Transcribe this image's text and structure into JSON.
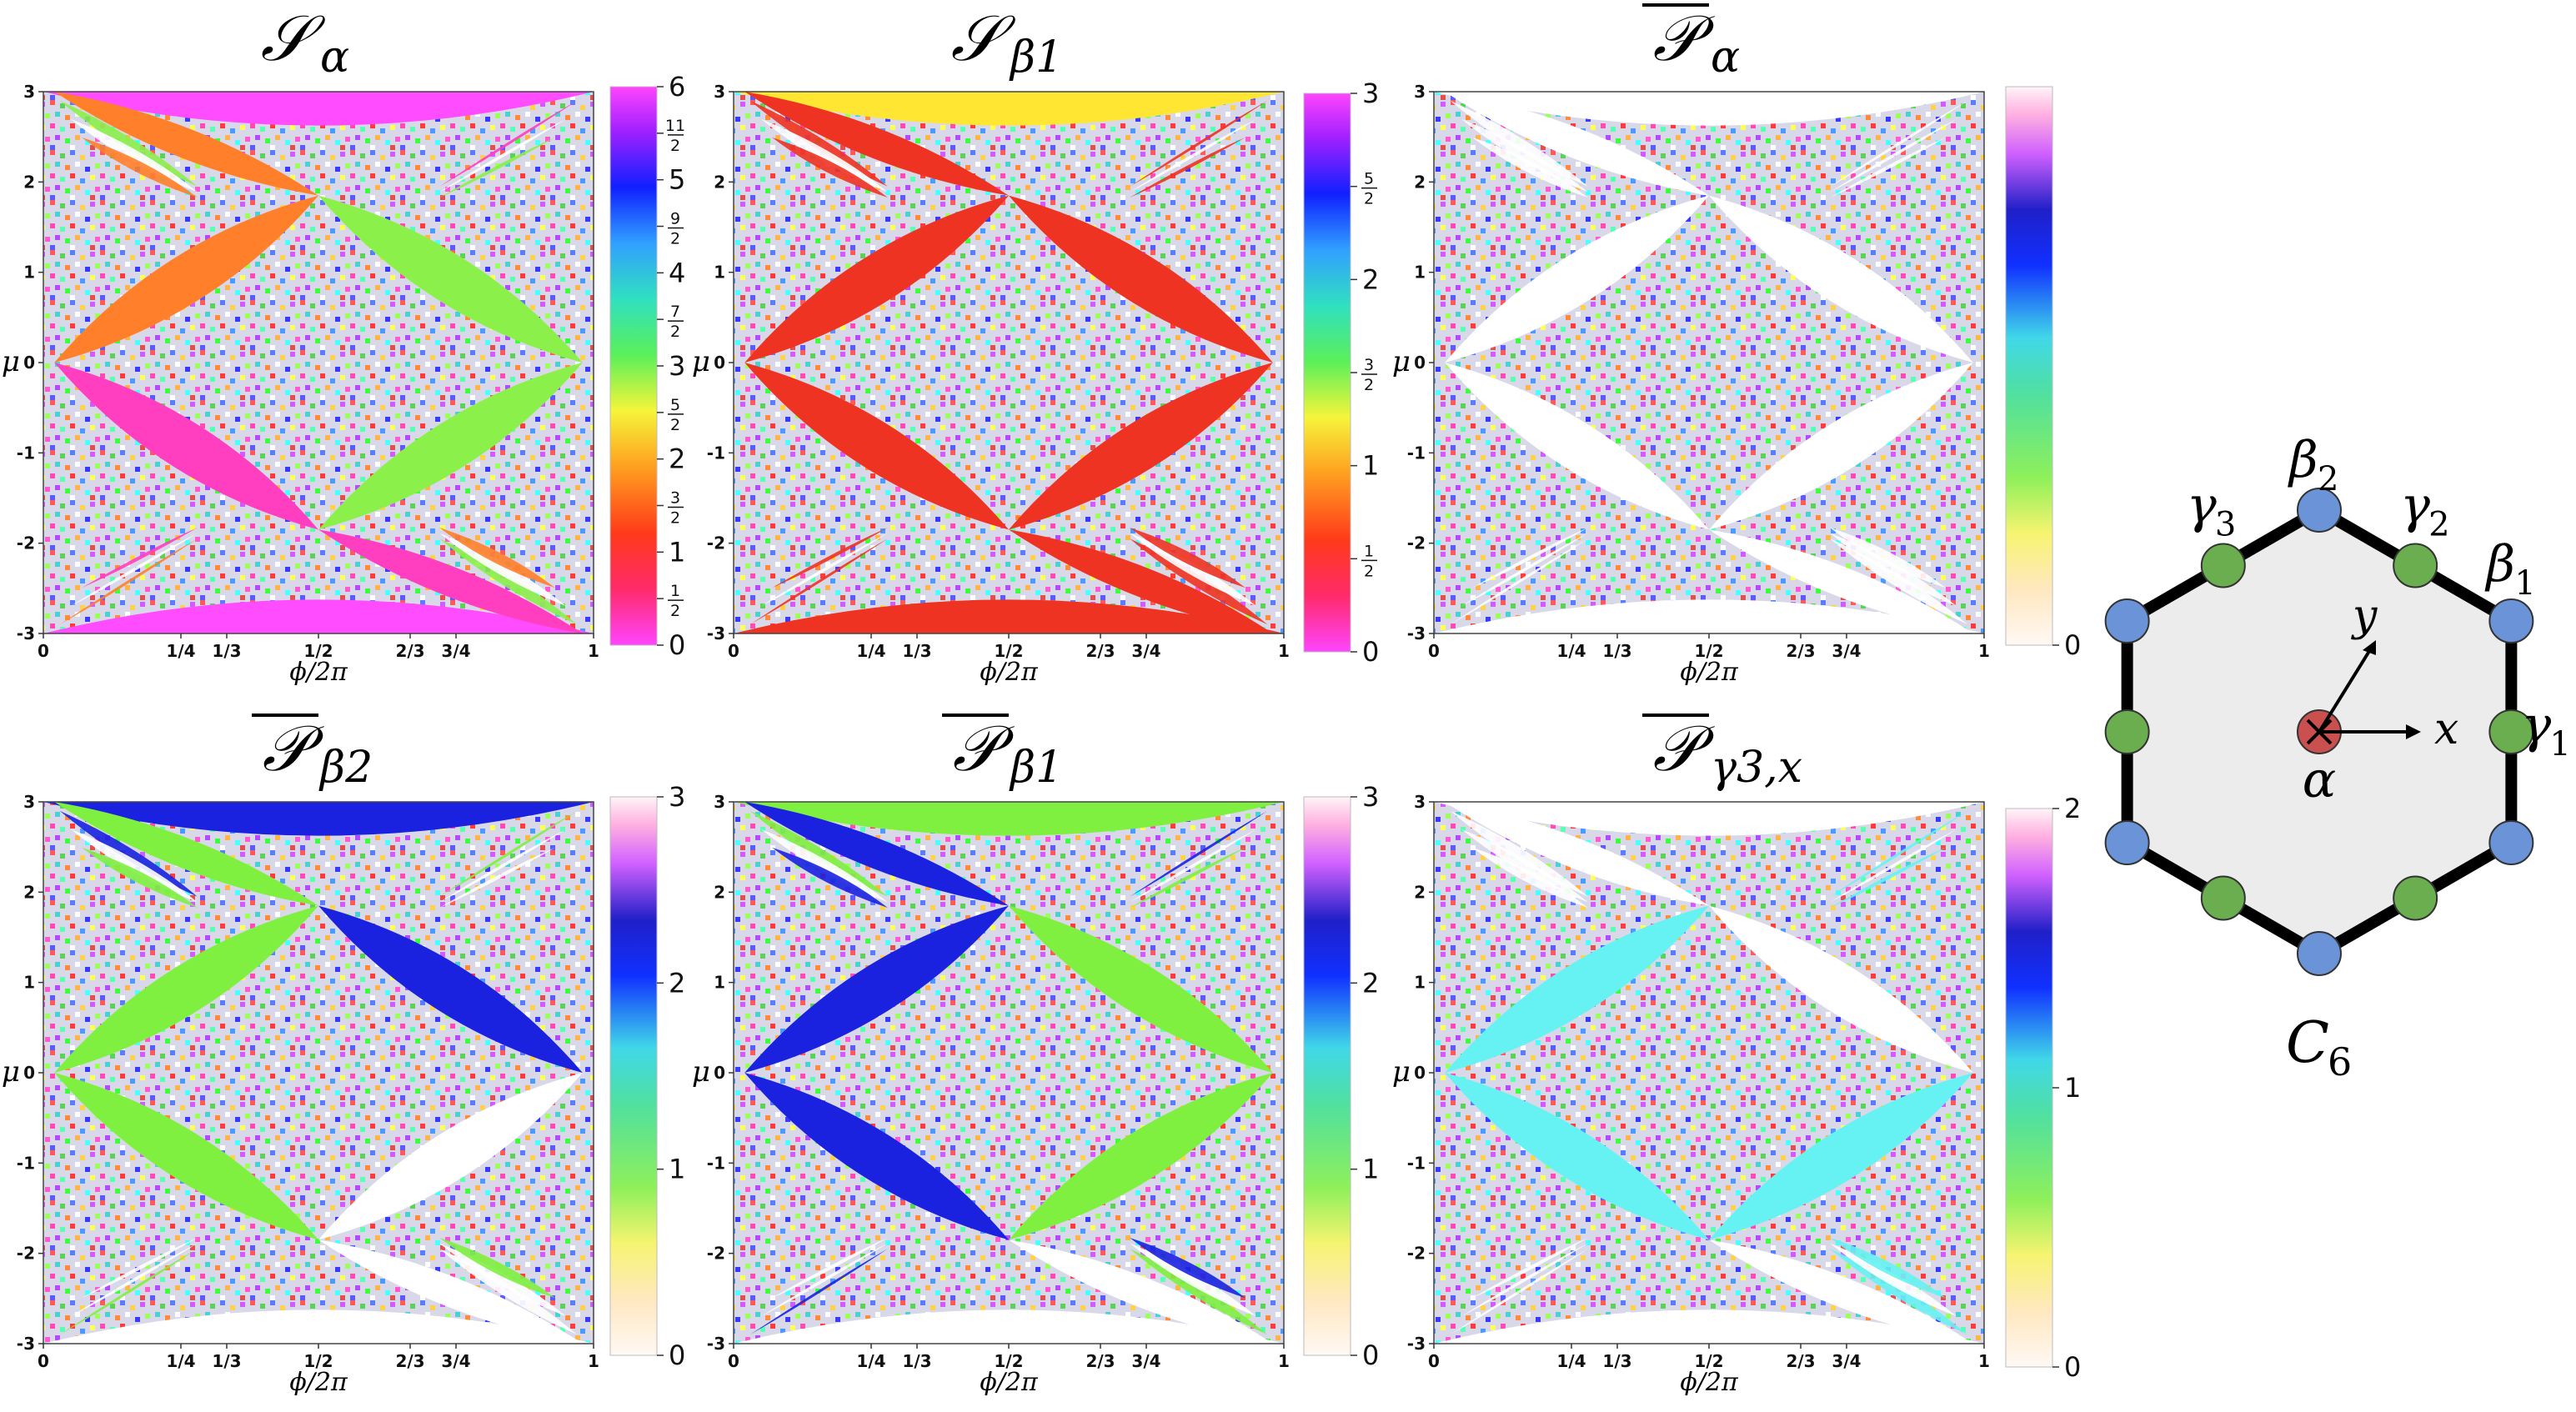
{
  "panels": [
    {
      "title": "𝒮",
      "subscript": "α",
      "overline": false,
      "colormap": "rainbow",
      "cbar_ticks": [
        {
          "v": 6,
          "t": "6"
        },
        {
          "v": 5.5,
          "n": "11",
          "d": "2"
        },
        {
          "v": 5,
          "t": "5"
        },
        {
          "v": 4.5,
          "n": "9",
          "d": "2"
        },
        {
          "v": 4,
          "t": "4"
        },
        {
          "v": 3.5,
          "n": "7",
          "d": "2"
        },
        {
          "v": 3,
          "t": "3"
        },
        {
          "v": 2.5,
          "n": "5",
          "d": "2"
        },
        {
          "v": 2,
          "t": "2"
        },
        {
          "v": 1.5,
          "n": "3",
          "d": "2"
        },
        {
          "v": 1,
          "t": "1"
        },
        {
          "v": 0.5,
          "n": "1",
          "d": "2"
        },
        {
          "v": 0,
          "t": "0"
        }
      ],
      "cbar_range": [
        0,
        6
      ],
      "lobe_colors": [
        "#ff7f2a",
        "#8cf04a",
        "#ff3fbf",
        "#ff7f2a",
        "#8cf04a",
        "#ff3fbf"
      ],
      "band_colors": [
        "#ff4cff",
        "#ff4cff"
      ]
    },
    {
      "title": "𝒮",
      "subscript": "β1",
      "overline": false,
      "colormap": "rainbow",
      "cbar_ticks": [
        {
          "v": 3,
          "t": "3"
        },
        {
          "v": 2.5,
          "n": "5",
          "d": "2"
        },
        {
          "v": 2,
          "t": "2"
        },
        {
          "v": 1.5,
          "n": "3",
          "d": "2"
        },
        {
          "v": 1,
          "t": "1"
        },
        {
          "v": 0.5,
          "n": "1",
          "d": "2"
        },
        {
          "v": 0,
          "t": "0"
        }
      ],
      "cbar_range": [
        0,
        3
      ],
      "lobe_colors": [
        "#ee3322",
        "#ee3322",
        "#ee3322",
        "#ee3322",
        "#ee3322",
        "#ee3322"
      ],
      "band_colors": [
        "#ffe633",
        "#ee3322"
      ]
    },
    {
      "title": "𝒫",
      "subscript": "α",
      "overline": true,
      "colormap": "pale",
      "cbar_ticks": [
        {
          "v": 0,
          "t": "0"
        }
      ],
      "cbar_range": [
        0,
        1
      ],
      "lobe_colors": [
        "#ffffff",
        "#ffffff",
        "#ffffff",
        "#ffffff",
        "#ffffff",
        "#ffffff"
      ],
      "band_colors": [
        "#ffffff",
        "#ffffff"
      ]
    },
    {
      "title": "𝒫",
      "subscript": "β2",
      "overline": true,
      "colormap": "pale",
      "cbar_ticks": [
        {
          "v": 3,
          "t": "3"
        },
        {
          "v": 2,
          "t": "2"
        },
        {
          "v": 1,
          "t": "1"
        },
        {
          "v": 0,
          "t": "0"
        }
      ],
      "cbar_range": [
        0,
        3
      ],
      "lobe_colors": [
        "#80f040",
        "#1a22e0",
        "#80f040",
        "#80f040",
        "#ffffff",
        "#ffffff"
      ],
      "band_colors": [
        "#1a22e0",
        "#ffffff"
      ]
    },
    {
      "title": "𝒫",
      "subscript": "β1",
      "overline": true,
      "colormap": "pale",
      "cbar_ticks": [
        {
          "v": 3,
          "t": "3"
        },
        {
          "v": 2,
          "t": "2"
        },
        {
          "v": 1,
          "t": "1"
        },
        {
          "v": 0,
          "t": "0"
        }
      ],
      "cbar_range": [
        0,
        3
      ],
      "lobe_colors": [
        "#1a22e0",
        "#80f040",
        "#1a22e0",
        "#1a22e0",
        "#80f040",
        "#ffffff"
      ],
      "band_colors": [
        "#80f040",
        "#ffffff"
      ]
    },
    {
      "title": "𝒫",
      "subscript": "γ3,x",
      "overline": true,
      "colormap": "pale",
      "cbar_ticks": [
        {
          "v": 2,
          "t": "2"
        },
        {
          "v": 1,
          "t": "1"
        },
        {
          "v": 0,
          "t": "0"
        }
      ],
      "cbar_range": [
        0,
        2
      ],
      "lobe_colors": [
        "#66f2f2",
        "#ffffff",
        "#66f2f2",
        "#ffffff",
        "#66f2f2",
        "#ffffff"
      ],
      "band_colors": [
        "#ffffff",
        "#ffffff"
      ]
    }
  ],
  "axes": {
    "x_label": "ϕ/2π",
    "y_label": "μ",
    "x_ticks": [
      "0",
      "1/4",
      "1/3",
      "1/2",
      "2/3",
      "3/4",
      "1"
    ],
    "x_tick_values": [
      0,
      0.25,
      0.3333,
      0.5,
      0.6667,
      0.75,
      1
    ],
    "y_ticks": [
      "3",
      "2",
      "1",
      "0",
      "-1",
      "-2",
      "-3"
    ],
    "y_tick_values": [
      3,
      2,
      1,
      0,
      -1,
      -2,
      -3
    ]
  },
  "hexagon": {
    "caption": "C6",
    "caption_main": "C",
    "caption_sub": "6",
    "center_label": "α",
    "x_axis_label": "x",
    "y_axis_label": "y",
    "beta1_label": "β",
    "beta1_sub": "1",
    "beta2_label": "β",
    "beta2_sub": "2",
    "gamma1_label": "γ",
    "gamma1_sub": "1",
    "gamma2_label": "γ",
    "gamma2_sub": "2",
    "gamma3_label": "γ",
    "gamma3_sub": "3",
    "vertex_color": "#6a93d8",
    "edge_color": "#6aae4f",
    "center_color": "#c9504f",
    "fill_color": "#ececec"
  }
}
